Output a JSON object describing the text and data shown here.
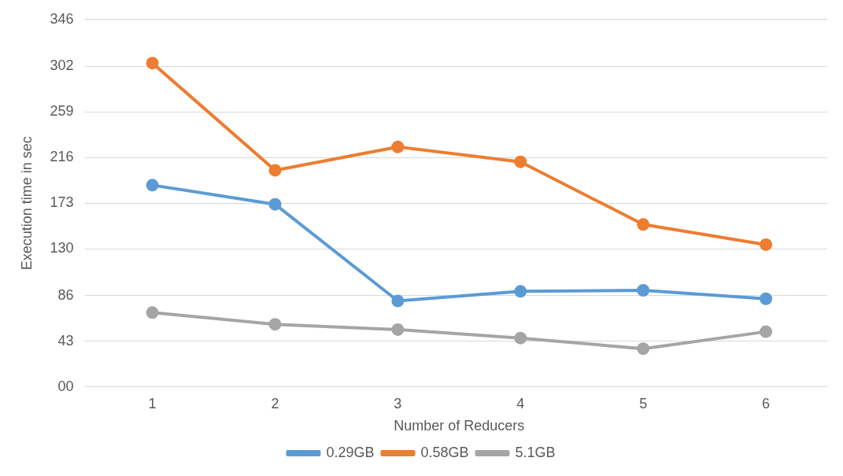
{
  "chart_data": {
    "type": "line",
    "xlabel": "Number of Reducers",
    "ylabel": "Execution time in sec",
    "categories": [
      "1",
      "2",
      "3",
      "4",
      "5",
      "6"
    ],
    "series": [
      {
        "name": "0.29GB",
        "color": "#5b9bd5",
        "values": [
          190,
          172,
          81,
          90,
          91,
          83
        ]
      },
      {
        "name": "0.58GB",
        "color": "#ed7d31",
        "values": [
          305,
          204,
          226,
          212,
          153,
          134
        ]
      },
      {
        "name": "5.1GB",
        "color": "#a5a5a5",
        "values": [
          70,
          59,
          54,
          46,
          36,
          52
        ]
      }
    ],
    "ylim": [
      0,
      346
    ],
    "yticks": [
      {
        "value": 0,
        "label": "00"
      },
      43,
      86,
      130,
      173,
      216,
      259,
      302,
      346
    ],
    "grid": "y",
    "legend": "bottom",
    "marker": "circle",
    "line_style": "solid"
  }
}
